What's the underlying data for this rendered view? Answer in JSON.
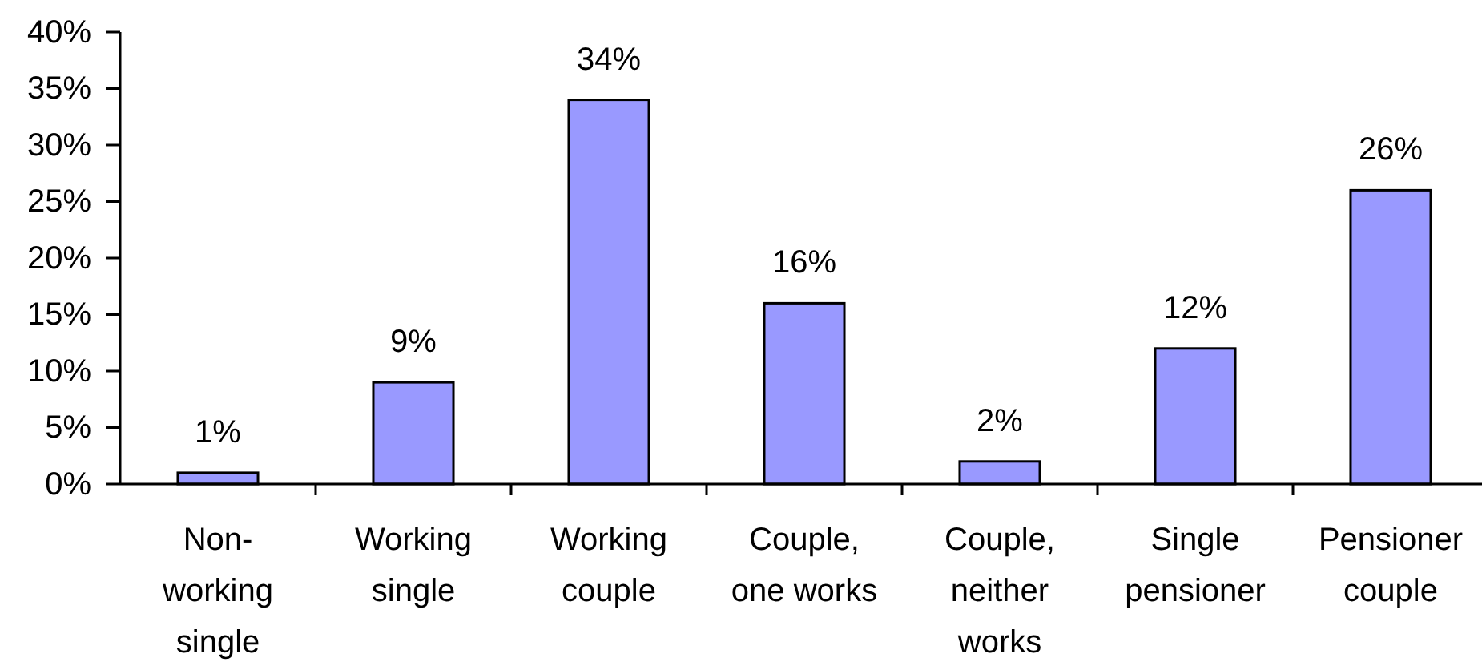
{
  "chart_data": {
    "type": "bar",
    "categories": [
      "Non-\nworking\nsingle",
      "Working\nsingle",
      "Working\ncouple",
      "Couple,\none works",
      "Couple,\nneither\nworks",
      "Single\npensioner",
      "Pensioner\ncouple"
    ],
    "values": [
      1,
      9,
      34,
      16,
      2,
      12,
      26
    ],
    "value_labels": [
      "1%",
      "9%",
      "34%",
      "16%",
      "2%",
      "12%",
      "26%"
    ],
    "color": "#9999ff",
    "ylim": [
      0,
      40
    ],
    "yticks": [
      {
        "value": 0,
        "label": "0%"
      },
      {
        "value": 5,
        "label": "5%"
      },
      {
        "value": 10,
        "label": "10%"
      },
      {
        "value": 15,
        "label": "15%"
      },
      {
        "value": 20,
        "label": "20%"
      },
      {
        "value": 25,
        "label": "25%"
      },
      {
        "value": 30,
        "label": "30%"
      },
      {
        "value": 35,
        "label": "35%"
      },
      {
        "value": 40,
        "label": "40%"
      }
    ]
  }
}
